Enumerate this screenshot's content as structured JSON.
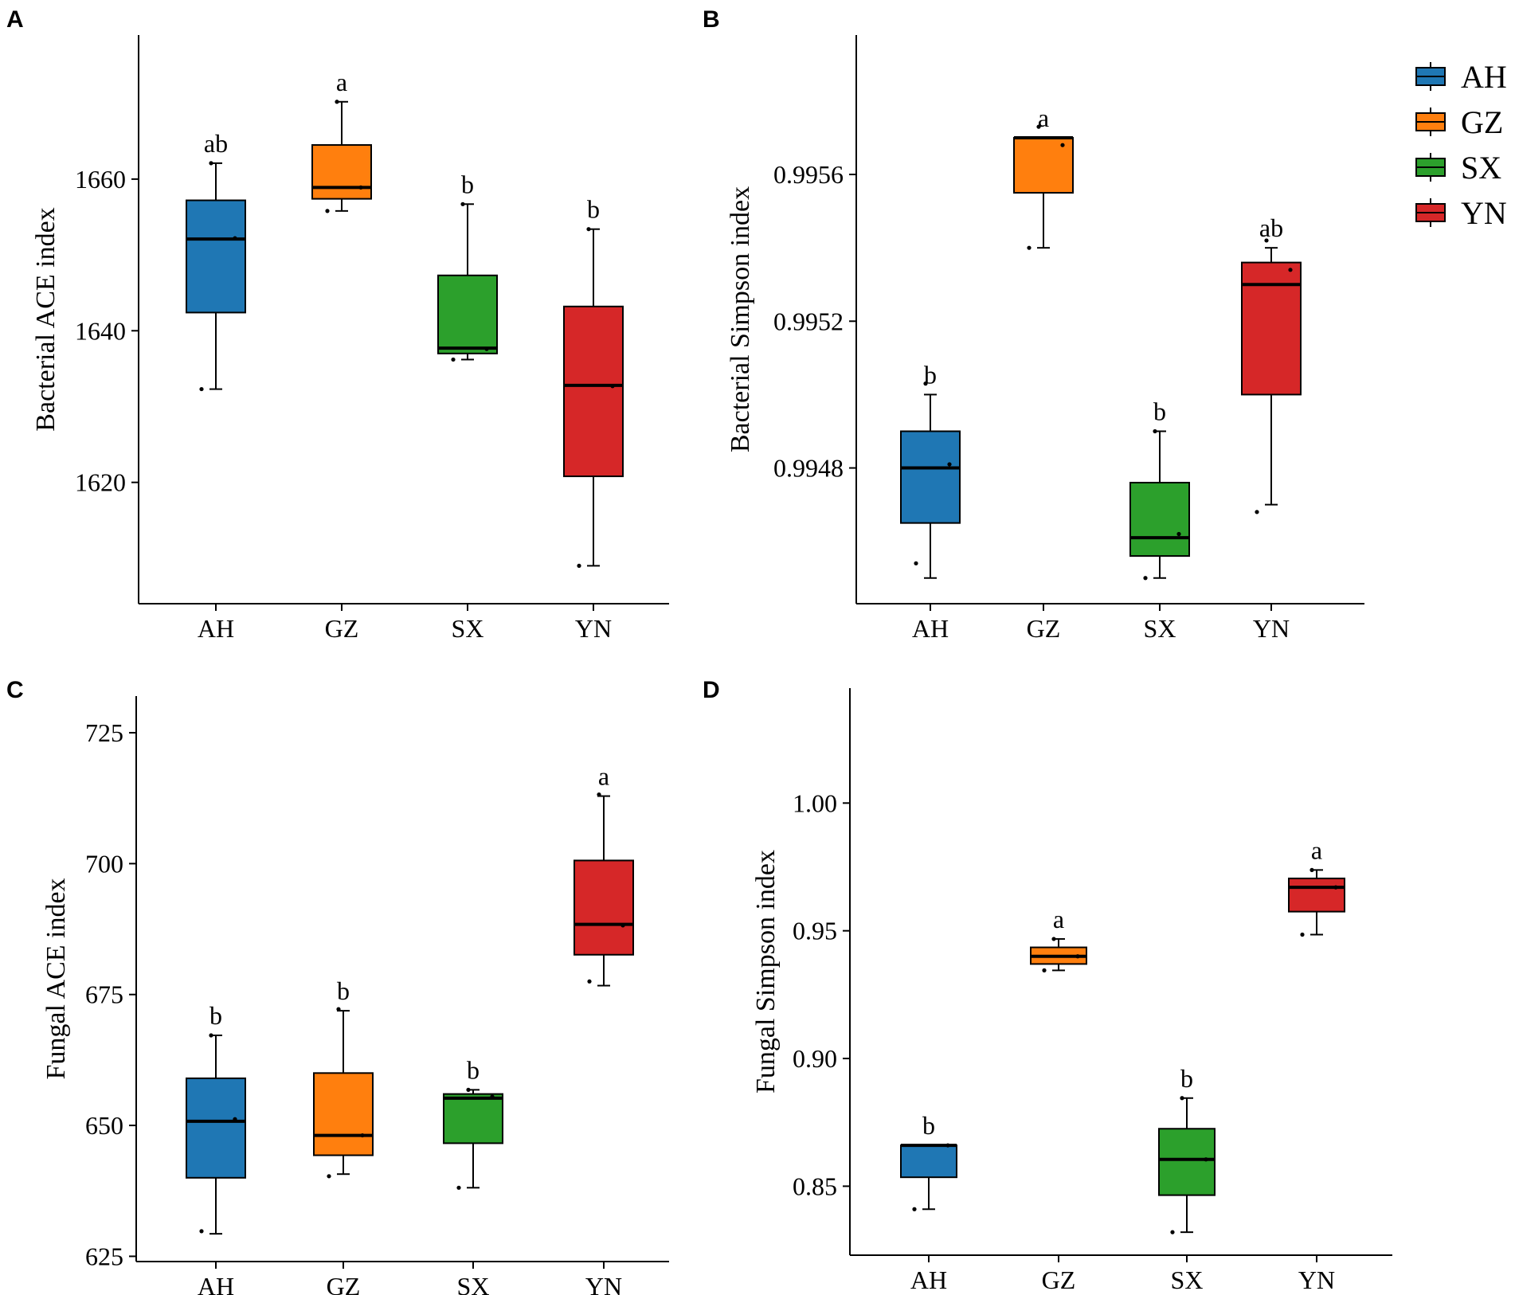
{
  "groups": [
    "AH",
    "GZ",
    "SX",
    "YN"
  ],
  "colors": {
    "AH": "#1f77b4",
    "GZ": "#ff7f0e",
    "SX": "#2ca02c",
    "YN": "#d62728"
  },
  "legend": {
    "entries": [
      "AH",
      "GZ",
      "SX",
      "YN"
    ]
  },
  "chart_data": [
    {
      "type": "box",
      "panel": "A",
      "ylabel": "Bacterial ACE index",
      "ylim": [
        1604,
        1679
      ],
      "yticks": [
        1620,
        1640,
        1660
      ],
      "ytick_labels": [
        "1620",
        "1640",
        "1660"
      ],
      "categories": [
        "AH",
        "GZ",
        "SX",
        "YN"
      ],
      "boxes": [
        {
          "group": "AH",
          "min": 1632.3,
          "q1": 1642.4,
          "median": 1652.1,
          "q3": 1657.2,
          "max": 1662.1,
          "sig": "ab",
          "points": [
            1632.3,
            1652.2,
            1662.1
          ]
        },
        {
          "group": "GZ",
          "min": 1655.8,
          "q1": 1657.4,
          "median": 1658.9,
          "q3": 1664.5,
          "max": 1670.2,
          "sig": "a",
          "points": [
            1655.8,
            1658.9,
            1670.2
          ]
        },
        {
          "group": "SX",
          "min": 1636.2,
          "q1": 1637.0,
          "median": 1637.7,
          "q3": 1647.3,
          "max": 1656.7,
          "sig": "b",
          "points": [
            1636.2,
            1637.6,
            1656.7
          ]
        },
        {
          "group": "YN",
          "min": 1609.0,
          "q1": 1620.8,
          "median": 1632.8,
          "q3": 1643.2,
          "max": 1653.4,
          "sig": "b",
          "points": [
            1609.0,
            1632.7,
            1653.4
          ]
        }
      ]
    },
    {
      "type": "box",
      "panel": "B",
      "ylabel": "Bacterial Simpson index",
      "ylim": [
        0.99443,
        0.99598
      ],
      "yticks": [
        0.9948,
        0.9952,
        0.9956
      ],
      "ytick_labels": [
        "0.9948",
        "0.9952",
        "0.9956"
      ],
      "categories": [
        "AH",
        "GZ",
        "SX",
        "YN"
      ],
      "boxes": [
        {
          "group": "AH",
          "min": 0.9945,
          "q1": 0.99465,
          "median": 0.9948,
          "q3": 0.9949,
          "max": 0.995,
          "sig": "b",
          "points": [
            0.99454,
            0.99481,
            0.99503
          ]
        },
        {
          "group": "GZ",
          "min": 0.9954,
          "q1": 0.99555,
          "median": 0.9957,
          "q3": 0.9957,
          "max": 0.9957,
          "sig": "a",
          "points": [
            0.9954,
            0.99568,
            0.99573
          ]
        },
        {
          "group": "SX",
          "min": 0.9945,
          "q1": 0.99456,
          "median": 0.99461,
          "q3": 0.99476,
          "max": 0.9949,
          "sig": "b",
          "points": [
            0.9945,
            0.99462,
            0.9949
          ]
        },
        {
          "group": "YN",
          "min": 0.9947,
          "q1": 0.995,
          "median": 0.9953,
          "q3": 0.99536,
          "max": 0.9954,
          "sig": "ab",
          "points": [
            0.99468,
            0.99534,
            0.99542
          ]
        }
      ]
    },
    {
      "type": "box",
      "panel": "C",
      "ylabel": "Fungal ACE index",
      "ylim": [
        624,
        732
      ],
      "yticks": [
        625,
        650,
        675,
        700,
        725
      ],
      "ytick_labels": [
        "625",
        "650",
        "675",
        "700",
        "725"
      ],
      "categories": [
        "AH",
        "GZ",
        "SX",
        "YN"
      ],
      "boxes": [
        {
          "group": "AH",
          "min": 629.3,
          "q1": 640.0,
          "median": 650.8,
          "q3": 659.0,
          "max": 667.2,
          "sig": "b",
          "points": [
            629.8,
            651.2,
            667.2
          ]
        },
        {
          "group": "GZ",
          "min": 640.7,
          "q1": 644.3,
          "median": 648.1,
          "q3": 660.0,
          "max": 671.9,
          "sig": "b",
          "points": [
            640.3,
            648.1,
            672.2
          ]
        },
        {
          "group": "SX",
          "min": 638.1,
          "q1": 646.6,
          "median": 655.2,
          "q3": 656.0,
          "max": 656.8,
          "sig": "b",
          "points": [
            638.1,
            655.5,
            656.8
          ]
        },
        {
          "group": "YN",
          "min": 676.7,
          "q1": 682.6,
          "median": 688.4,
          "q3": 700.6,
          "max": 712.9,
          "sig": "a",
          "points": [
            677.5,
            688.2,
            713.2
          ]
        }
      ]
    },
    {
      "type": "box",
      "panel": "D",
      "ylabel": "Fungal Simpson index",
      "ylim": [
        0.823,
        1.045
      ],
      "yticks": [
        0.85,
        0.9,
        0.95,
        1.0
      ],
      "ytick_labels": [
        "0.85",
        "0.90",
        "0.95",
        "1.00"
      ],
      "categories": [
        "AH",
        "GZ",
        "SX",
        "YN"
      ],
      "boxes": [
        {
          "group": "AH",
          "min": 0.841,
          "q1": 0.8535,
          "median": 0.866,
          "q3": 0.866,
          "max": 0.866,
          "sig": "b",
          "points": [
            0.841,
            0.866
          ]
        },
        {
          "group": "GZ",
          "min": 0.9345,
          "q1": 0.937,
          "median": 0.94,
          "q3": 0.9435,
          "max": 0.9468,
          "sig": "a",
          "points": [
            0.9345,
            0.94,
            0.9468
          ]
        },
        {
          "group": "SX",
          "min": 0.832,
          "q1": 0.8465,
          "median": 0.8605,
          "q3": 0.8725,
          "max": 0.8845,
          "sig": "b",
          "points": [
            0.832,
            0.8605,
            0.8845
          ]
        },
        {
          "group": "YN",
          "min": 0.9485,
          "q1": 0.9575,
          "median": 0.967,
          "q3": 0.9705,
          "max": 0.9738,
          "sig": "a",
          "points": [
            0.9485,
            0.967,
            0.9738
          ]
        }
      ]
    }
  ]
}
